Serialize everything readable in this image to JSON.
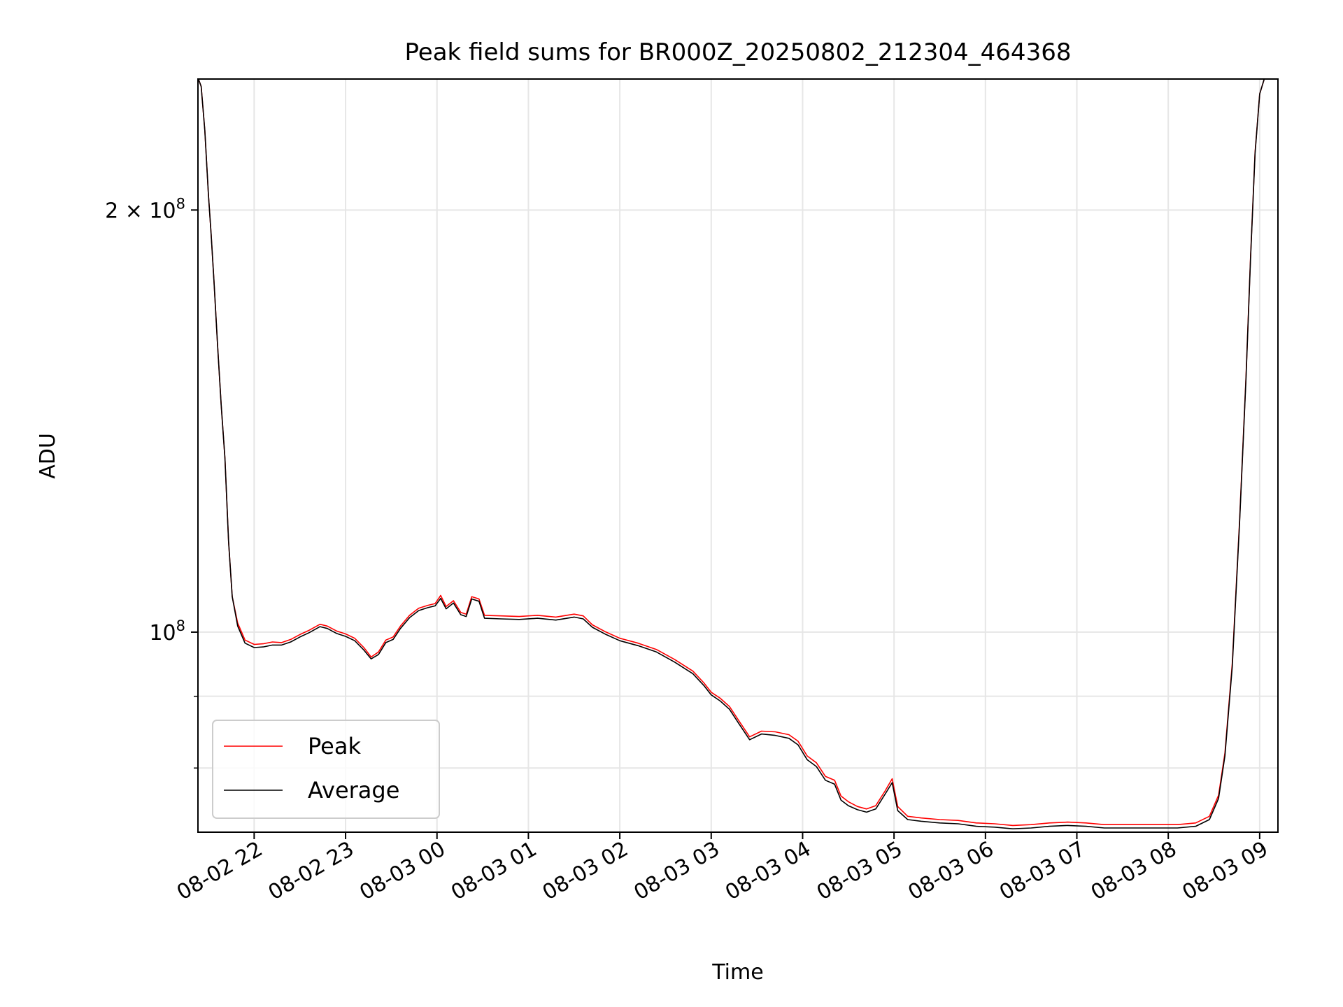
{
  "chart_data": {
    "type": "line",
    "title": "Peak field sums for BR000Z_20250802_212304_464368",
    "xlabel": "Time",
    "ylabel": "ADU",
    "y_scale": "log",
    "ylim": [
      72000000,
      248000000
    ],
    "x_unit": "hours since 2025-08-02 21:00",
    "xlim": [
      0.385,
      12.2
    ],
    "grid": true,
    "legend_position": "lower-left",
    "x_ticks": [
      {
        "value": 1,
        "label": "08-02 22"
      },
      {
        "value": 2,
        "label": "08-02 23"
      },
      {
        "value": 3,
        "label": "08-03 00"
      },
      {
        "value": 4,
        "label": "08-03 01"
      },
      {
        "value": 5,
        "label": "08-03 02"
      },
      {
        "value": 6,
        "label": "08-03 03"
      },
      {
        "value": 7,
        "label": "08-03 04"
      },
      {
        "value": 8,
        "label": "08-03 05"
      },
      {
        "value": 9,
        "label": "08-03 06"
      },
      {
        "value": 10,
        "label": "08-03 07"
      },
      {
        "value": 11,
        "label": "08-03 08"
      },
      {
        "value": 12,
        "label": "08-03 09"
      }
    ],
    "y_major_ticks": [
      {
        "value": 100000000,
        "label_base": "10",
        "label_exp": "8"
      },
      {
        "value": 200000000,
        "label_base": "2 × 10",
        "label_exp": "8"
      }
    ],
    "y_minor_ticks": [
      80000000,
      90000000
    ],
    "series": [
      {
        "name": "Peak",
        "color": "#ff0000",
        "points": [
          [
            0.39,
            248000000
          ],
          [
            0.42,
            245000000
          ],
          [
            0.46,
            228000000
          ],
          [
            0.5,
            205000000
          ],
          [
            0.53,
            192000000
          ],
          [
            0.56,
            178000000
          ],
          [
            0.6,
            160000000
          ],
          [
            0.64,
            145000000
          ],
          [
            0.68,
            133000000
          ],
          [
            0.72,
            116000000
          ],
          [
            0.76,
            106000000
          ],
          [
            0.82,
            101500000
          ],
          [
            0.9,
            98700000
          ],
          [
            1.0,
            98000000
          ],
          [
            1.1,
            98100000
          ],
          [
            1.2,
            98400000
          ],
          [
            1.3,
            98300000
          ],
          [
            1.4,
            98800000
          ],
          [
            1.5,
            99600000
          ],
          [
            1.6,
            100300000
          ],
          [
            1.72,
            101300000
          ],
          [
            1.8,
            101000000
          ],
          [
            1.9,
            100200000
          ],
          [
            2.0,
            99700000
          ],
          [
            2.1,
            99000000
          ],
          [
            2.2,
            97500000
          ],
          [
            2.28,
            96000000
          ],
          [
            2.36,
            96800000
          ],
          [
            2.44,
            98700000
          ],
          [
            2.52,
            99200000
          ],
          [
            2.6,
            101000000
          ],
          [
            2.7,
            102800000
          ],
          [
            2.8,
            104000000
          ],
          [
            2.9,
            104500000
          ],
          [
            2.98,
            104800000
          ],
          [
            3.04,
            106200000
          ],
          [
            3.1,
            104300000
          ],
          [
            3.18,
            105300000
          ],
          [
            3.26,
            103300000
          ],
          [
            3.32,
            103000000
          ],
          [
            3.38,
            106000000
          ],
          [
            3.46,
            105600000
          ],
          [
            3.52,
            102800000
          ],
          [
            3.7,
            102700000
          ],
          [
            3.9,
            102600000
          ],
          [
            4.1,
            102800000
          ],
          [
            4.3,
            102500000
          ],
          [
            4.5,
            103000000
          ],
          [
            4.6,
            102700000
          ],
          [
            4.7,
            101200000
          ],
          [
            4.85,
            100000000
          ],
          [
            5.0,
            99000000
          ],
          [
            5.2,
            98200000
          ],
          [
            5.4,
            97200000
          ],
          [
            5.6,
            95600000
          ],
          [
            5.8,
            93800000
          ],
          [
            5.92,
            92000000
          ],
          [
            6.0,
            90600000
          ],
          [
            6.1,
            89700000
          ],
          [
            6.2,
            88500000
          ],
          [
            6.3,
            86500000
          ],
          [
            6.42,
            84200000
          ],
          [
            6.55,
            85000000
          ],
          [
            6.7,
            84900000
          ],
          [
            6.85,
            84500000
          ],
          [
            6.95,
            83600000
          ],
          [
            7.05,
            81600000
          ],
          [
            7.15,
            80700000
          ],
          [
            7.25,
            78900000
          ],
          [
            7.35,
            78400000
          ],
          [
            7.42,
            76400000
          ],
          [
            7.5,
            75700000
          ],
          [
            7.6,
            75100000
          ],
          [
            7.7,
            74800000
          ],
          [
            7.8,
            75200000
          ],
          [
            7.9,
            77000000
          ],
          [
            7.98,
            78600000
          ],
          [
            8.04,
            75100000
          ],
          [
            8.15,
            73900000
          ],
          [
            8.3,
            73700000
          ],
          [
            8.5,
            73500000
          ],
          [
            8.7,
            73400000
          ],
          [
            8.9,
            73100000
          ],
          [
            9.1,
            73000000
          ],
          [
            9.3,
            72800000
          ],
          [
            9.5,
            72900000
          ],
          [
            9.7,
            73100000
          ],
          [
            9.9,
            73200000
          ],
          [
            10.1,
            73100000
          ],
          [
            10.3,
            72900000
          ],
          [
            10.5,
            72900000
          ],
          [
            10.7,
            72900000
          ],
          [
            10.9,
            72900000
          ],
          [
            11.1,
            72900000
          ],
          [
            11.3,
            73100000
          ],
          [
            11.45,
            73900000
          ],
          [
            11.55,
            76500000
          ],
          [
            11.62,
            82000000
          ],
          [
            11.7,
            95000000
          ],
          [
            11.78,
            120000000
          ],
          [
            11.85,
            152000000
          ],
          [
            11.9,
            185000000
          ],
          [
            11.95,
            220000000
          ],
          [
            12.0,
            242000000
          ],
          [
            12.05,
            248000000
          ]
        ]
      },
      {
        "name": "Average",
        "color": "#000000",
        "points": [
          [
            0.39,
            248000000
          ],
          [
            0.42,
            245000000
          ],
          [
            0.46,
            228000000
          ],
          [
            0.5,
            205000000
          ],
          [
            0.53,
            192000000
          ],
          [
            0.56,
            178000000
          ],
          [
            0.6,
            160000000
          ],
          [
            0.64,
            145000000
          ],
          [
            0.68,
            133000000
          ],
          [
            0.72,
            116000000
          ],
          [
            0.76,
            106000000
          ],
          [
            0.82,
            101000000
          ],
          [
            0.9,
            98200000
          ],
          [
            1.0,
            97500000
          ],
          [
            1.1,
            97600000
          ],
          [
            1.2,
            97900000
          ],
          [
            1.3,
            97900000
          ],
          [
            1.4,
            98400000
          ],
          [
            1.5,
            99200000
          ],
          [
            1.6,
            99900000
          ],
          [
            1.72,
            100900000
          ],
          [
            1.8,
            100600000
          ],
          [
            1.9,
            99800000
          ],
          [
            2.0,
            99300000
          ],
          [
            2.1,
            98600000
          ],
          [
            2.2,
            97100000
          ],
          [
            2.28,
            95700000
          ],
          [
            2.36,
            96400000
          ],
          [
            2.44,
            98300000
          ],
          [
            2.52,
            98800000
          ],
          [
            2.6,
            100600000
          ],
          [
            2.7,
            102400000
          ],
          [
            2.8,
            103600000
          ],
          [
            2.9,
            104100000
          ],
          [
            2.98,
            104400000
          ],
          [
            3.04,
            105700000
          ],
          [
            3.1,
            103900000
          ],
          [
            3.18,
            104900000
          ],
          [
            3.26,
            102900000
          ],
          [
            3.32,
            102600000
          ],
          [
            3.38,
            105600000
          ],
          [
            3.46,
            105200000
          ],
          [
            3.52,
            102300000
          ],
          [
            3.7,
            102200000
          ],
          [
            3.9,
            102100000
          ],
          [
            4.1,
            102300000
          ],
          [
            4.3,
            102000000
          ],
          [
            4.5,
            102500000
          ],
          [
            4.6,
            102200000
          ],
          [
            4.7,
            100800000
          ],
          [
            4.85,
            99600000
          ],
          [
            5.0,
            98600000
          ],
          [
            5.2,
            97800000
          ],
          [
            5.4,
            96800000
          ],
          [
            5.6,
            95200000
          ],
          [
            5.8,
            93400000
          ],
          [
            5.92,
            91600000
          ],
          [
            6.0,
            90200000
          ],
          [
            6.1,
            89300000
          ],
          [
            6.2,
            88100000
          ],
          [
            6.3,
            86100000
          ],
          [
            6.42,
            83800000
          ],
          [
            6.55,
            84600000
          ],
          [
            6.7,
            84400000
          ],
          [
            6.85,
            84000000
          ],
          [
            6.95,
            83100000
          ],
          [
            7.05,
            81100000
          ],
          [
            7.15,
            80200000
          ],
          [
            7.25,
            78400000
          ],
          [
            7.35,
            77900000
          ],
          [
            7.42,
            75900000
          ],
          [
            7.5,
            75200000
          ],
          [
            7.6,
            74700000
          ],
          [
            7.7,
            74400000
          ],
          [
            7.8,
            74800000
          ],
          [
            7.9,
            76600000
          ],
          [
            7.98,
            78100000
          ],
          [
            8.04,
            74600000
          ],
          [
            8.15,
            73500000
          ],
          [
            8.3,
            73300000
          ],
          [
            8.5,
            73100000
          ],
          [
            8.7,
            73000000
          ],
          [
            8.9,
            72700000
          ],
          [
            9.1,
            72600000
          ],
          [
            9.3,
            72400000
          ],
          [
            9.5,
            72500000
          ],
          [
            9.7,
            72700000
          ],
          [
            9.9,
            72800000
          ],
          [
            10.1,
            72700000
          ],
          [
            10.3,
            72500000
          ],
          [
            10.5,
            72500000
          ],
          [
            10.7,
            72500000
          ],
          [
            10.9,
            72500000
          ],
          [
            11.1,
            72500000
          ],
          [
            11.3,
            72700000
          ],
          [
            11.45,
            73500000
          ],
          [
            11.55,
            76100000
          ],
          [
            11.62,
            81600000
          ],
          [
            11.7,
            94500000
          ],
          [
            11.78,
            119500000
          ],
          [
            11.85,
            151500000
          ],
          [
            11.9,
            184500000
          ],
          [
            11.95,
            219500000
          ],
          [
            12.0,
            242000000
          ],
          [
            12.05,
            248000000
          ]
        ]
      }
    ]
  }
}
